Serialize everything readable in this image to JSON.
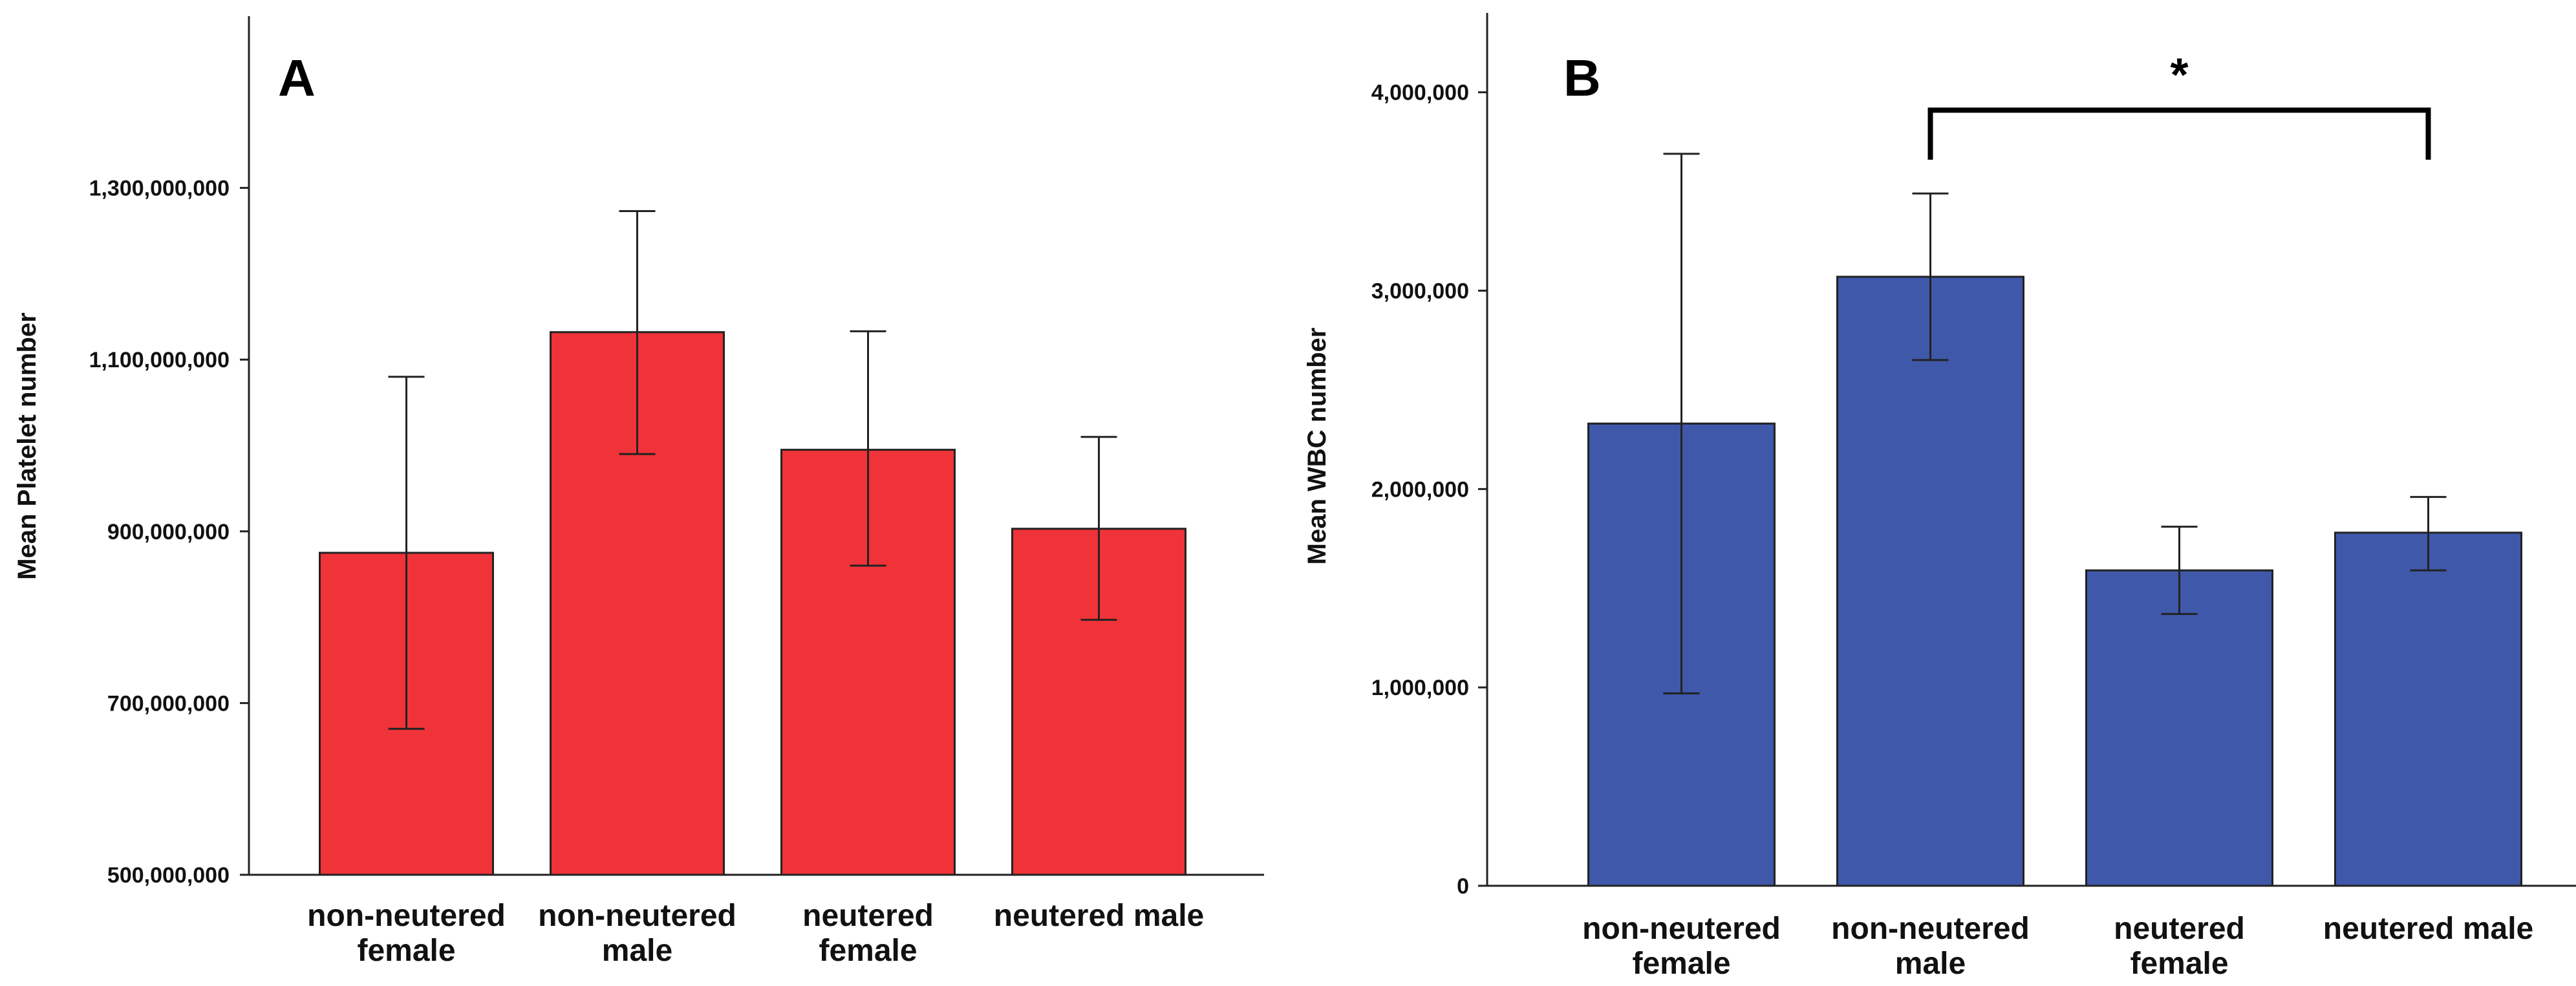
{
  "chart_data": [
    {
      "type": "bar",
      "panel_label": "A",
      "ylabel": "Mean Platelet number",
      "xlabel": "",
      "categories": [
        [
          "non-neutered",
          "female"
        ],
        [
          "non-neutered",
          "male"
        ],
        [
          "neutered",
          "female"
        ],
        [
          "neutered male"
        ]
      ],
      "values": [
        875000000,
        1132000000,
        995000000,
        903000000
      ],
      "error_low": [
        670000000,
        990000000,
        860000000,
        797000000
      ],
      "error_high": [
        1080000000,
        1273000000,
        1133000000,
        1010000000
      ],
      "ylim": [
        500000000,
        1500000000
      ],
      "yticks": [
        500000000,
        700000000,
        900000000,
        1100000000,
        1300000000
      ],
      "ytick_labels": [
        "500,000,000",
        "700,000,000",
        "900,000,000",
        "1,100,000,000",
        "1,300,000,000"
      ],
      "bar_color": "#ef3338",
      "significance": null
    },
    {
      "type": "bar",
      "panel_label": "B",
      "ylabel": "Mean WBC number",
      "xlabel": "",
      "categories": [
        [
          "non-neutered",
          "female"
        ],
        [
          "non-neutered",
          "male"
        ],
        [
          "neutered",
          "female"
        ],
        [
          "neutered male"
        ]
      ],
      "values": [
        2330000,
        3070000,
        1590000,
        1780000
      ],
      "error_low": [
        970000,
        2650000,
        1370000,
        1590000
      ],
      "error_high": [
        3690000,
        3490000,
        1810000,
        1960000
      ],
      "ylim": [
        0,
        4400000
      ],
      "yticks": [
        0,
        1000000,
        2000000,
        3000000,
        4000000
      ],
      "ytick_labels": [
        "0",
        "1,000,000",
        "2,000,000",
        "3,000,000",
        "4,000,000"
      ],
      "bar_color": "#3f58aa",
      "significance": {
        "from": 1,
        "to": 3,
        "label": "*",
        "y_value": 3910000,
        "drop_value": 3660000
      }
    }
  ]
}
